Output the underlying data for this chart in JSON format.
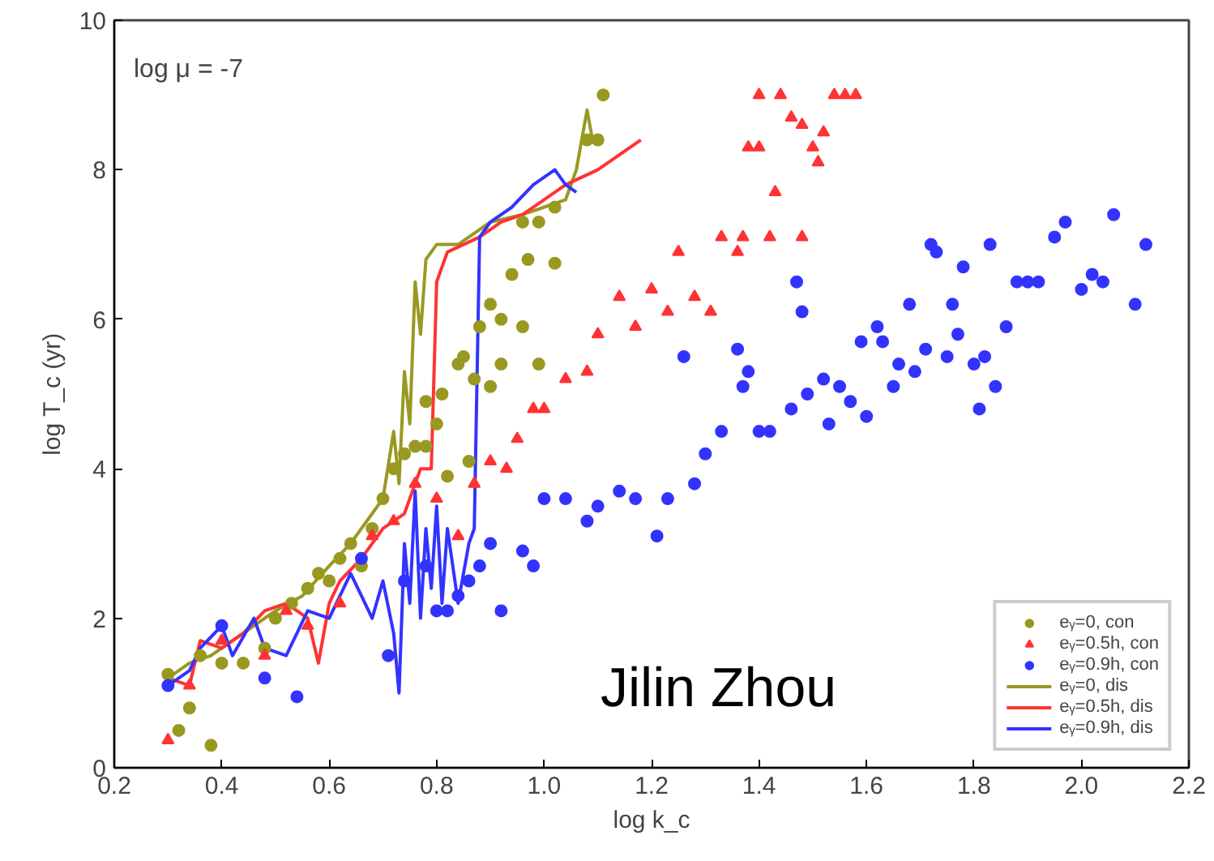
{
  "chart_data": {
    "type": "scatter",
    "xlabel": "log k_c",
    "ylabel": "log T_c (yr)",
    "annotations": [
      "log μ = -7",
      "Jilin Zhou"
    ],
    "xlim": [
      0.2,
      2.2
    ],
    "ylim": [
      0,
      10
    ],
    "xticks": [
      0.2,
      0.4,
      0.6,
      0.8,
      {
        "value": 1.0,
        "label": "1.0"
      },
      1.2,
      1.4,
      1.6,
      1.8,
      {
        "value": 2.0,
        "label": "2.0"
      },
      2.2
    ],
    "yticks": [
      0,
      2,
      4,
      6,
      8,
      10
    ],
    "grid": false,
    "legend": "bottom right",
    "series": [
      {
        "name": "eᵧ=0, con",
        "marker": "circle",
        "color": "#999922",
        "x": [
          0.3,
          0.32,
          0.34,
          0.38,
          0.36,
          0.4,
          0.44,
          0.48,
          0.5,
          0.53,
          0.56,
          0.58,
          0.6,
          0.62,
          0.64,
          0.66,
          0.68,
          0.7,
          0.72,
          0.74,
          0.76,
          0.78,
          0.78,
          0.8,
          0.81,
          0.84,
          0.85,
          0.87,
          0.88,
          0.86,
          0.82,
          0.9,
          0.9,
          0.92,
          0.92,
          0.94,
          0.96,
          0.97,
          0.99,
          1.02,
          0.96,
          0.99,
          1.08,
          1.1,
          1.11,
          1.02
        ],
        "values": [
          1.25,
          0.5,
          0.8,
          0.3,
          1.5,
          1.4,
          1.4,
          1.6,
          2.0,
          2.2,
          2.4,
          2.6,
          2.5,
          2.8,
          3.0,
          2.7,
          3.2,
          3.6,
          4.0,
          4.2,
          4.3,
          4.3,
          4.9,
          4.6,
          5.0,
          5.4,
          5.5,
          5.2,
          5.9,
          4.1,
          3.9,
          5.1,
          6.2,
          6.0,
          5.4,
          6.6,
          5.9,
          6.8,
          5.4,
          6.75,
          7.3,
          7.3,
          8.4,
          8.4,
          9.0,
          7.5
        ]
      },
      {
        "name": "eᵧ=0.5h, con",
        "marker": "triangle",
        "color": "#ff3333",
        "x": [
          0.3,
          0.34,
          0.4,
          0.48,
          0.52,
          0.56,
          0.62,
          0.68,
          0.72,
          0.76,
          0.8,
          0.84,
          0.87,
          0.9,
          0.93,
          0.95,
          0.98,
          1.0,
          1.04,
          1.08,
          1.1,
          1.14,
          1.17,
          1.2,
          1.23,
          1.25,
          1.28,
          1.31,
          1.33,
          1.36,
          1.37,
          1.42,
          1.48,
          1.38,
          1.4,
          1.43,
          1.4,
          1.44,
          1.46,
          1.48,
          1.5,
          1.51,
          1.52,
          1.54,
          1.56,
          1.58
        ],
        "values": [
          0.37,
          1.1,
          1.7,
          1.5,
          2.1,
          1.9,
          2.2,
          3.1,
          3.3,
          3.8,
          3.6,
          3.1,
          3.8,
          4.1,
          4.0,
          4.4,
          4.8,
          4.8,
          5.2,
          5.3,
          5.8,
          6.3,
          5.9,
          6.4,
          6.1,
          6.9,
          6.3,
          6.1,
          7.1,
          6.9,
          7.1,
          7.1,
          7.1,
          8.3,
          8.3,
          7.7,
          9.0,
          9.0,
          8.7,
          8.6,
          8.3,
          8.1,
          8.5,
          9.0,
          9.0,
          9.0
        ]
      },
      {
        "name": "eᵧ=0.9h, con",
        "marker": "circle",
        "color": "#3333ff",
        "x": [
          0.3,
          0.4,
          0.48,
          0.54,
          0.66,
          0.71,
          0.74,
          0.78,
          0.8,
          0.82,
          0.84,
          0.86,
          0.88,
          0.9,
          0.92,
          0.96,
          0.98,
          1.0,
          1.04,
          1.08,
          1.1,
          1.14,
          1.17,
          1.21,
          1.23,
          1.28,
          1.3,
          1.33,
          1.36,
          1.37,
          1.38,
          1.26,
          1.4,
          1.42,
          1.46,
          1.47,
          1.48,
          1.49,
          1.52,
          1.53,
          1.55,
          1.57,
          1.59,
          1.6,
          1.62,
          1.63,
          1.65,
          1.66,
          1.68,
          1.69,
          1.71,
          1.72,
          1.73,
          1.75,
          1.76,
          1.77,
          1.78,
          1.8,
          1.81,
          1.82,
          1.83,
          1.84,
          1.86,
          1.88,
          1.9,
          1.92,
          1.95,
          1.97,
          2.0,
          2.02,
          2.04,
          2.06,
          2.1,
          2.12
        ],
        "values": [
          1.1,
          1.9,
          1.2,
          0.95,
          2.8,
          1.5,
          2.5,
          2.7,
          2.1,
          2.1,
          2.3,
          2.5,
          2.7,
          3.0,
          2.1,
          2.9,
          2.7,
          3.6,
          3.6,
          3.3,
          3.5,
          3.7,
          3.6,
          3.1,
          3.6,
          3.8,
          4.2,
          4.5,
          5.6,
          5.1,
          5.3,
          5.5,
          4.5,
          4.5,
          4.8,
          6.5,
          6.1,
          5.0,
          5.2,
          4.6,
          5.1,
          4.9,
          5.7,
          4.7,
          5.9,
          5.7,
          5.1,
          5.4,
          6.2,
          5.3,
          5.6,
          7.0,
          6.9,
          5.5,
          6.2,
          5.8,
          6.7,
          5.4,
          4.8,
          5.5,
          7.0,
          5.1,
          5.9,
          6.5,
          6.5,
          6.5,
          7.1,
          7.3,
          6.4,
          6.6,
          6.5,
          7.4,
          6.2,
          7.0
        ]
      },
      {
        "name": "eᵧ=0, dis",
        "type": "line",
        "color": "#999922",
        "x": [
          0.3,
          0.34,
          0.38,
          0.42,
          0.46,
          0.5,
          0.55,
          0.6,
          0.64,
          0.68,
          0.7,
          0.72,
          0.73,
          0.74,
          0.75,
          0.76,
          0.77,
          0.78,
          0.8,
          0.84,
          0.9,
          0.96,
          1.0,
          1.04,
          1.06,
          1.08,
          1.09,
          1.1
        ],
        "values": [
          1.2,
          1.4,
          1.5,
          1.7,
          1.9,
          2.1,
          2.3,
          2.7,
          3.0,
          3.4,
          3.6,
          4.5,
          3.8,
          5.3,
          4.6,
          6.5,
          5.8,
          6.8,
          7.0,
          7.0,
          7.3,
          7.4,
          7.5,
          7.6,
          8.0,
          8.8,
          8.4,
          8.4
        ]
      },
      {
        "name": "eᵧ=0.5h, dis",
        "type": "line",
        "color": "#ff3333",
        "x": [
          0.3,
          0.34,
          0.36,
          0.4,
          0.44,
          0.48,
          0.52,
          0.56,
          0.58,
          0.6,
          0.62,
          0.66,
          0.7,
          0.74,
          0.77,
          0.79,
          0.8,
          0.82,
          0.88,
          0.92,
          0.96,
          1.0,
          1.04,
          1.1,
          1.18
        ],
        "values": [
          1.2,
          1.1,
          1.7,
          1.6,
          1.8,
          2.1,
          2.2,
          2.0,
          1.4,
          2.2,
          2.5,
          2.8,
          3.2,
          3.4,
          4.0,
          4.0,
          6.5,
          6.9,
          7.1,
          7.3,
          7.4,
          7.6,
          7.8,
          8.0,
          8.4
        ]
      },
      {
        "name": "eᵧ=0.9h, dis",
        "type": "line",
        "color": "#3333ff",
        "x": [
          0.3,
          0.34,
          0.36,
          0.4,
          0.42,
          0.46,
          0.48,
          0.52,
          0.56,
          0.6,
          0.64,
          0.66,
          0.68,
          0.7,
          0.72,
          0.73,
          0.74,
          0.75,
          0.76,
          0.77,
          0.78,
          0.79,
          0.8,
          0.81,
          0.82,
          0.84,
          0.86,
          0.87,
          0.88,
          0.9,
          0.94,
          0.98,
          1.02,
          1.04,
          1.06
        ],
        "values": [
          1.1,
          1.3,
          1.6,
          1.9,
          1.5,
          2.0,
          1.6,
          1.5,
          2.1,
          2.0,
          2.6,
          2.3,
          2.0,
          2.5,
          1.8,
          1.0,
          3.0,
          2.2,
          3.7,
          2.0,
          3.2,
          2.4,
          3.5,
          2.2,
          3.2,
          2.2,
          3.0,
          3.2,
          7.1,
          7.3,
          7.5,
          7.8,
          8.0,
          7.8,
          7.7
        ]
      }
    ]
  }
}
